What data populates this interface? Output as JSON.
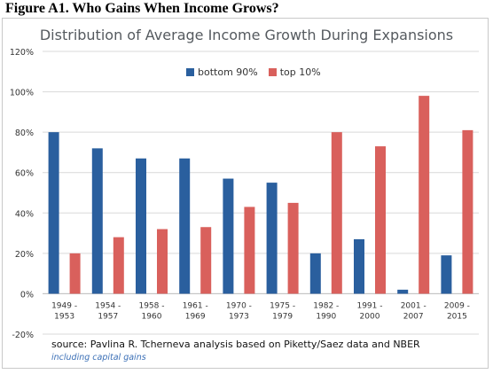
{
  "figure": {
    "heading": "Figure A1. Who Gains When Income Grows?",
    "source": "source: Pavlina R. Tcherneva analysis based on Piketty/Saez data and NBER",
    "note": "including capital gains"
  },
  "colors": {
    "bottom90": "#2a5f9e",
    "top10": "#d9605c",
    "grid": "#d9d9d9",
    "axis_text": "#333333"
  },
  "chart_data": {
    "type": "bar",
    "title": "Distribution of Average Income Growth During Expansions",
    "xlabel": "",
    "ylabel": "",
    "categories": [
      [
        "1949 -",
        "1953"
      ],
      [
        "1954 -",
        "1957"
      ],
      [
        "1958 -",
        "1960"
      ],
      [
        "1961 -",
        "1969"
      ],
      [
        "1970 -",
        "1973"
      ],
      [
        "1975 -",
        "1979"
      ],
      [
        "1982 -",
        "1990"
      ],
      [
        "1991 -",
        "2000"
      ],
      [
        "2001 -",
        "2007"
      ],
      [
        "2009 -",
        "2015"
      ]
    ],
    "series": [
      {
        "name": "bottom 90%",
        "values": [
          80,
          72,
          67,
          67,
          57,
          55,
          20,
          27,
          2,
          19
        ]
      },
      {
        "name": "top 10%",
        "values": [
          20,
          28,
          32,
          33,
          43,
          45,
          80,
          73,
          98,
          81
        ]
      }
    ],
    "ylim": [
      -20,
      120
    ],
    "yticks": [
      -20,
      0,
      20,
      40,
      60,
      80,
      100,
      120
    ],
    "ytick_labels": [
      "-20%",
      "0%",
      "20%",
      "40%",
      "60%",
      "80%",
      "100%",
      "120%"
    ],
    "grid": true,
    "legend": "top-center"
  }
}
